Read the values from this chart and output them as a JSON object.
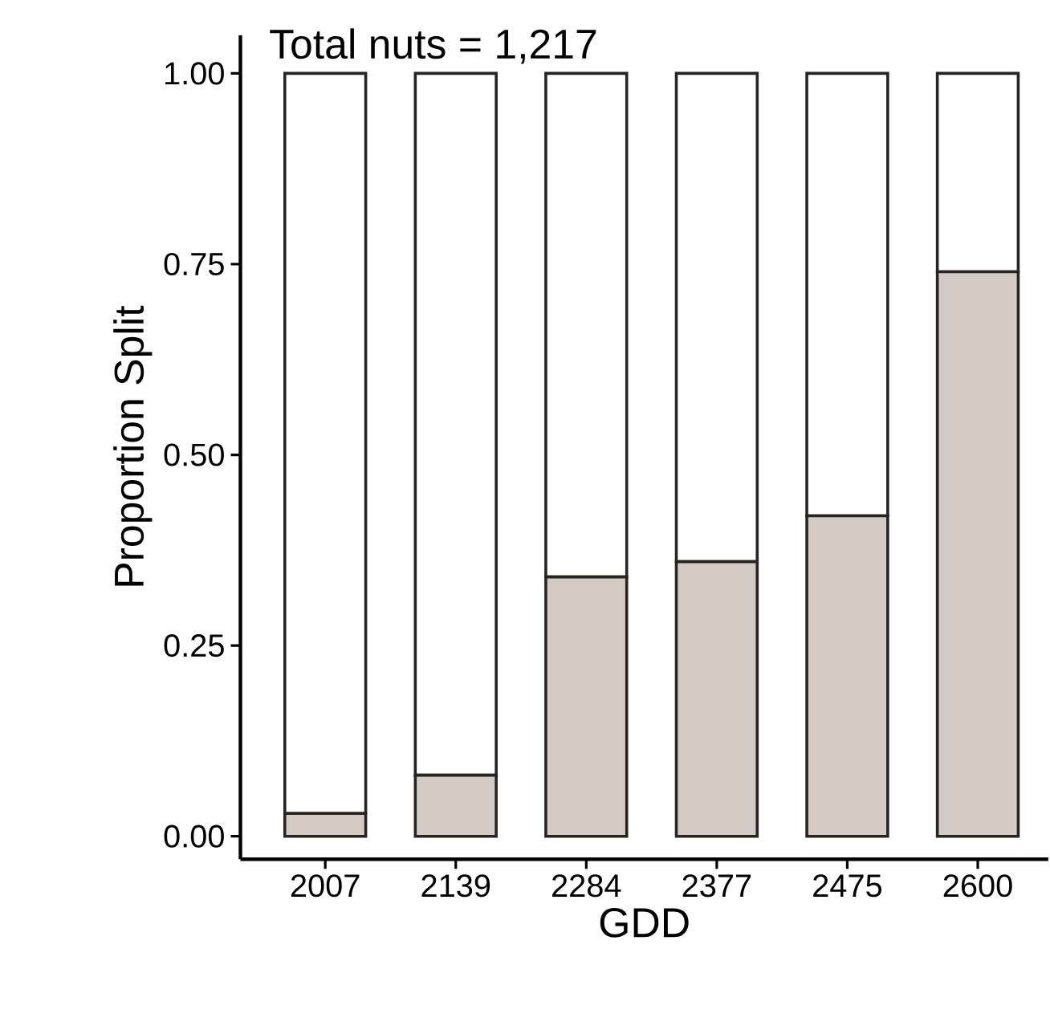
{
  "chart_data": {
    "type": "bar",
    "stacked": true,
    "xlabel": "GDD",
    "ylabel": "Proportion Split",
    "annotations": [
      "Total nuts = 1,217"
    ],
    "categories": [
      "2007",
      "2139",
      "2284",
      "2377",
      "2475",
      "2600"
    ],
    "series": [
      {
        "color": "#d3cac4",
        "values": [
          0.03,
          0.08,
          0.34,
          0.36,
          0.42,
          0.74
        ]
      },
      {
        "color": "#ffffff",
        "values": [
          0.97,
          0.92,
          0.66,
          0.64,
          0.58,
          0.26
        ]
      }
    ],
    "ylim": [
      -0.03,
      1.05
    ],
    "yticks": [
      {
        "value": 0,
        "label": "0.00"
      },
      {
        "value": 0.25,
        "label": "0.25"
      },
      {
        "value": 0.5,
        "label": "0.50"
      },
      {
        "value": 0.75,
        "label": "0.75"
      },
      {
        "value": 1,
        "label": "1.00"
      }
    ]
  }
}
